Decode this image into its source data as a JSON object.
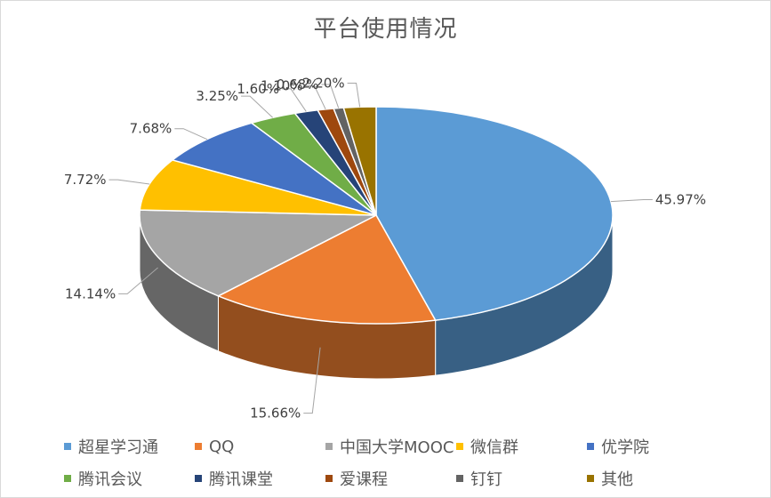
{
  "chart_data": {
    "type": "pie",
    "title": "平台使用情况",
    "categories": [
      "超星学习通",
      "QQ",
      "中国大学MOOC",
      "微信群",
      "优学院",
      "腾讯会议",
      "腾讯课堂",
      "爱课程",
      "钉钉",
      "其他"
    ],
    "values": [
      45.97,
      15.66,
      14.14,
      7.72,
      7.68,
      3.25,
      1.6,
      1.1,
      0.68,
      2.2
    ],
    "labels": [
      "45.97%",
      "15.66%",
      "14.14%",
      "7.72%",
      "7.68%",
      "3.25%",
      "1.60%",
      "1.10%",
      "0.68%",
      "2.20%"
    ],
    "colors": [
      "#5B9BD5",
      "#ED7D31",
      "#A5A5A5",
      "#FFC000",
      "#4472C4",
      "#70AD47",
      "#264478",
      "#9E480E",
      "#636363",
      "#997300"
    ],
    "legend_position": "bottom",
    "style": "3d"
  }
}
